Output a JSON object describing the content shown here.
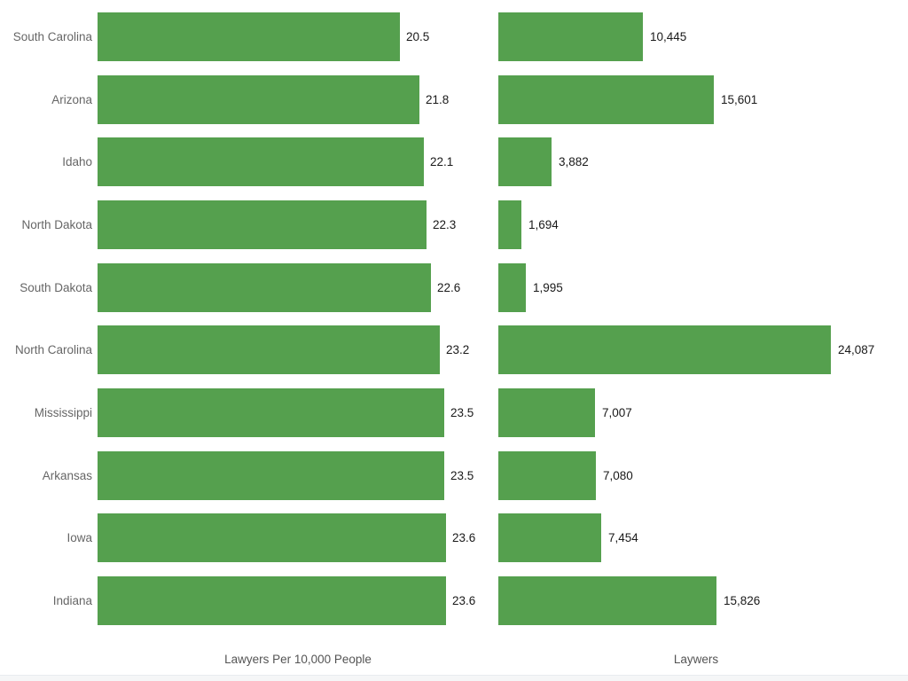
{
  "page": {
    "background": "#ffffff",
    "bottom_strip_color": "#f5f6f7"
  },
  "chart_data": {
    "type": "bar",
    "orientation": "horizontal",
    "grid": false,
    "legend": "none",
    "bar_color": "#55a04e",
    "category_label_color": "#666666",
    "value_label_color": "#1a1a1a",
    "axis_title_color": "#545454",
    "categories": [
      "South Carolina",
      "Arizona",
      "Idaho",
      "North Dakota",
      "South Dakota",
      "North Carolina",
      "Mississippi",
      "Arkansas",
      "Iowa",
      "Indiana"
    ],
    "series": [
      {
        "name": "Lawyers Per 10,000 People",
        "values": [
          20.5,
          21.8,
          22.1,
          22.3,
          22.6,
          23.2,
          23.5,
          23.5,
          23.6,
          23.6
        ],
        "labels": [
          "20.5",
          "21.8",
          "22.1",
          "22.3",
          "22.6",
          "23.2",
          "23.5",
          "23.5",
          "23.6",
          "23.6"
        ],
        "xlim": [
          0,
          23.6
        ]
      },
      {
        "name": "Laywers",
        "values": [
          10445,
          15601,
          3882,
          1694,
          1995,
          24087,
          7007,
          7080,
          7454,
          15826
        ],
        "labels": [
          "10,445",
          "15,601",
          "3,882",
          "1,694",
          "1,995",
          "24,087",
          "7,007",
          "7,080",
          "7,454",
          "15,826"
        ],
        "xlim": [
          0,
          24087
        ]
      }
    ],
    "left_axis_title": "Lawyers Per 10,000 People",
    "right_axis_title": "Laywers"
  }
}
